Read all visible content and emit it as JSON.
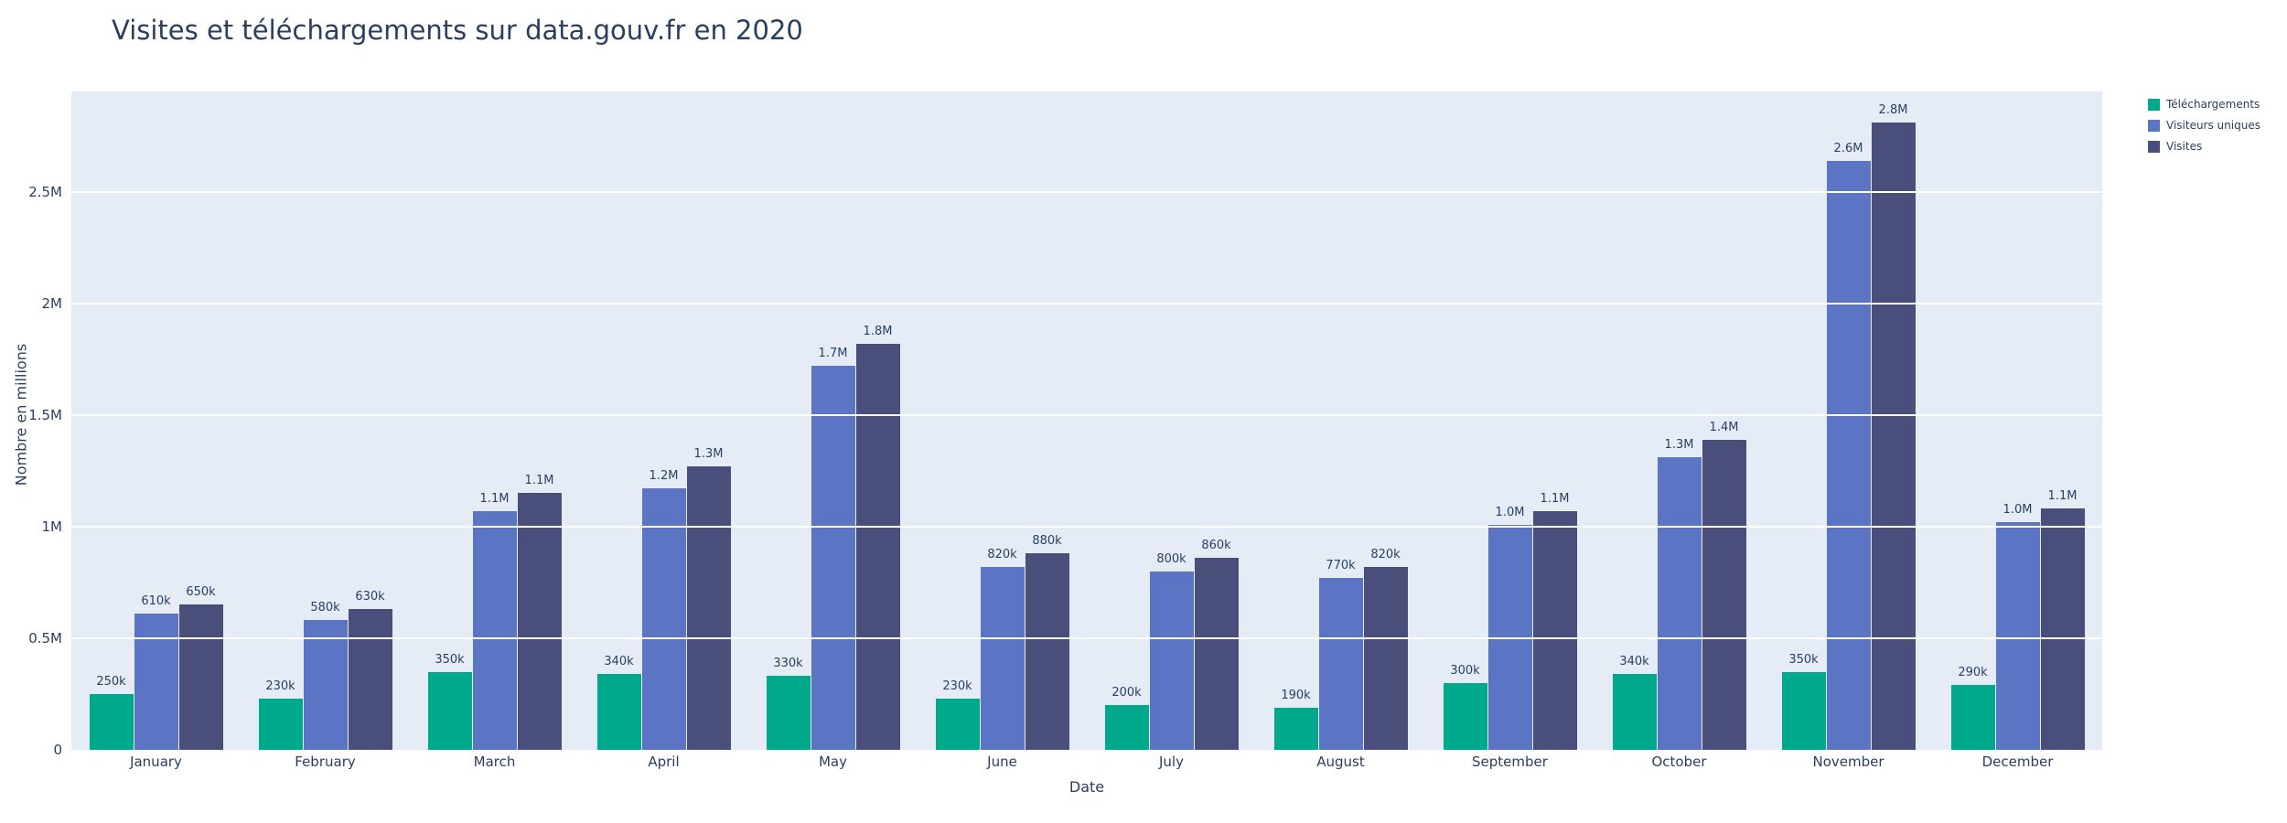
{
  "page": {
    "background": "#ffffff",
    "plot_bgcolor": "#e5ecf6",
    "gridline_color": "#ffffff",
    "text_color": "#2a3f5f"
  },
  "chart_data": {
    "type": "bar",
    "title": "Visites et téléchargements sur data.gouv.fr en 2020",
    "xlabel": "Date",
    "ylabel": "Nombre en millions",
    "grid": true,
    "legend_position": "top-right",
    "categories": [
      "January",
      "February",
      "March",
      "April",
      "May",
      "June",
      "July",
      "August",
      "September",
      "October",
      "November",
      "December"
    ],
    "ytick_values": [
      0,
      0.5,
      1,
      1.5,
      2,
      2.5
    ],
    "ytick_labels": [
      "0",
      "0.5M",
      "1M",
      "1.5M",
      "2M",
      "2.5M"
    ],
    "ylim": [
      0,
      2.95
    ],
    "y_unit": "millions",
    "series": [
      {
        "name": "Téléchargements",
        "color": "#00a88c",
        "values": [
          0.25,
          0.23,
          0.35,
          0.34,
          0.33,
          0.23,
          0.2,
          0.19,
          0.3,
          0.34,
          0.35,
          0.29
        ],
        "labels": [
          "250k",
          "230k",
          "350k",
          "340k",
          "330k",
          "230k",
          "200k",
          "190k",
          "300k",
          "340k",
          "350k",
          "290k"
        ]
      },
      {
        "name": "Visiteurs uniques",
        "color": "#5b74c4",
        "values": [
          0.61,
          0.58,
          1.07,
          1.17,
          1.72,
          0.82,
          0.8,
          0.77,
          1.01,
          1.31,
          2.64,
          1.02
        ],
        "labels": [
          "610k",
          "580k",
          "1.1M",
          "1.2M",
          "1.7M",
          "820k",
          "800k",
          "770k",
          "1.0M",
          "1.3M",
          "2.6M",
          "1.0M"
        ]
      },
      {
        "name": "Visites",
        "color": "#4a4e7a",
        "values": [
          0.65,
          0.63,
          1.15,
          1.27,
          1.82,
          0.88,
          0.86,
          0.82,
          1.07,
          1.39,
          2.81,
          1.08
        ],
        "labels": [
          "650k",
          "630k",
          "1.1M",
          "1.3M",
          "1.8M",
          "880k",
          "860k",
          "820k",
          "1.1M",
          "1.4M",
          "2.8M",
          "1.1M"
        ]
      }
    ]
  }
}
